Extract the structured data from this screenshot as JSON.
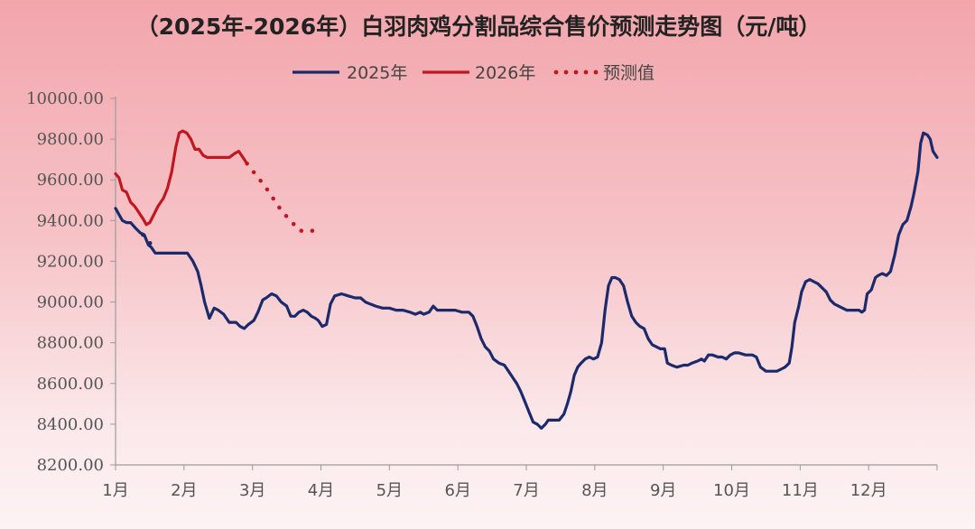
{
  "chart_data": {
    "type": "line",
    "title": "（2025年-2026年）白羽肉鸡分割品综合售价预测走势图（元/吨）",
    "xlabel": "",
    "ylabel": "",
    "ylim": [
      8200,
      10000
    ],
    "yticks": [
      "10000.00",
      "9800.00",
      "9600.00",
      "9400.00",
      "9200.00",
      "9000.00",
      "8800.00",
      "8600.00",
      "8400.00",
      "8200.00"
    ],
    "xticks": [
      "1月",
      "2月",
      "3月",
      "4月",
      "5月",
      "6月",
      "7月",
      "8月",
      "9月",
      "10月",
      "11月",
      "12月"
    ],
    "x_unit": "month (1.0 = start of 1月, 13.0 = end of 12月)",
    "grid": false,
    "legend_position": "top-center",
    "series": [
      {
        "name": "2025年",
        "color": "#1b2a6b",
        "style": "solid",
        "points": [
          [
            1.0,
            9460
          ],
          [
            1.05,
            9430
          ],
          [
            1.1,
            9400
          ],
          [
            1.16,
            9390
          ],
          [
            1.22,
            9390
          ],
          [
            1.3,
            9360
          ],
          [
            1.36,
            9340
          ],
          [
            1.42,
            9330
          ],
          [
            1.48,
            9280
          ],
          [
            1.52,
            9270
          ],
          [
            1.58,
            9240
          ],
          [
            1.7,
            9240
          ],
          [
            1.8,
            9240
          ],
          [
            1.95,
            9240
          ],
          [
            2.05,
            9240
          ],
          [
            2.13,
            9200
          ],
          [
            2.2,
            9150
          ],
          [
            2.25,
            9080
          ],
          [
            2.3,
            9000
          ],
          [
            2.37,
            8920
          ],
          [
            2.44,
            8970
          ],
          [
            2.5,
            8960
          ],
          [
            2.58,
            8940
          ],
          [
            2.66,
            8900
          ],
          [
            2.76,
            8900
          ],
          [
            2.82,
            8880
          ],
          [
            2.88,
            8870
          ],
          [
            2.94,
            8890
          ],
          [
            3.02,
            8910
          ],
          [
            3.08,
            8950
          ],
          [
            3.15,
            9010
          ],
          [
            3.2,
            9020
          ],
          [
            3.28,
            9040
          ],
          [
            3.35,
            9030
          ],
          [
            3.42,
            9000
          ],
          [
            3.5,
            8980
          ],
          [
            3.56,
            8930
          ],
          [
            3.62,
            8930
          ],
          [
            3.68,
            8950
          ],
          [
            3.74,
            8960
          ],
          [
            3.8,
            8950
          ],
          [
            3.86,
            8930
          ],
          [
            3.92,
            8920
          ],
          [
            3.96,
            8910
          ],
          [
            4.02,
            8880
          ],
          [
            4.08,
            8890
          ],
          [
            4.14,
            8990
          ],
          [
            4.2,
            9030
          ],
          [
            4.3,
            9040
          ],
          [
            4.4,
            9030
          ],
          [
            4.5,
            9020
          ],
          [
            4.58,
            9020
          ],
          [
            4.65,
            9000
          ],
          [
            4.72,
            8990
          ],
          [
            4.8,
            8980
          ],
          [
            4.9,
            8970
          ],
          [
            5.0,
            8970
          ],
          [
            5.1,
            8960
          ],
          [
            5.2,
            8960
          ],
          [
            5.3,
            8950
          ],
          [
            5.38,
            8940
          ],
          [
            5.45,
            8950
          ],
          [
            5.5,
            8940
          ],
          [
            5.58,
            8950
          ],
          [
            5.64,
            8980
          ],
          [
            5.7,
            8960
          ],
          [
            5.78,
            8960
          ],
          [
            5.86,
            8960
          ],
          [
            5.96,
            8960
          ],
          [
            6.06,
            8950
          ],
          [
            6.16,
            8950
          ],
          [
            6.22,
            8930
          ],
          [
            6.28,
            8880
          ],
          [
            6.34,
            8820
          ],
          [
            6.4,
            8780
          ],
          [
            6.46,
            8760
          ],
          [
            6.52,
            8720
          ],
          [
            6.6,
            8700
          ],
          [
            6.68,
            8690
          ],
          [
            6.74,
            8660
          ],
          [
            6.8,
            8630
          ],
          [
            6.86,
            8600
          ],
          [
            6.92,
            8560
          ],
          [
            6.98,
            8510
          ],
          [
            7.04,
            8460
          ],
          [
            7.1,
            8410
          ],
          [
            7.16,
            8400
          ],
          [
            7.22,
            8380
          ],
          [
            7.28,
            8400
          ],
          [
            7.32,
            8420
          ],
          [
            7.4,
            8420
          ],
          [
            7.48,
            8420
          ],
          [
            7.55,
            8450
          ],
          [
            7.6,
            8500
          ],
          [
            7.65,
            8560
          ],
          [
            7.7,
            8640
          ],
          [
            7.75,
            8680
          ],
          [
            7.8,
            8700
          ],
          [
            7.86,
            8720
          ],
          [
            7.92,
            8730
          ],
          [
            7.98,
            8720
          ],
          [
            8.04,
            8730
          ],
          [
            8.1,
            8800
          ],
          [
            8.15,
            8960
          ],
          [
            8.2,
            9080
          ],
          [
            8.25,
            9120
          ],
          [
            8.3,
            9120
          ],
          [
            8.36,
            9110
          ],
          [
            8.42,
            9080
          ],
          [
            8.48,
            9000
          ],
          [
            8.54,
            8930
          ],
          [
            8.6,
            8900
          ],
          [
            8.66,
            8880
          ],
          [
            8.72,
            8870
          ],
          [
            8.78,
            8820
          ],
          [
            8.84,
            8790
          ],
          [
            8.9,
            8780
          ],
          [
            8.96,
            8770
          ],
          [
            9.02,
            8770
          ],
          [
            9.06,
            8700
          ],
          [
            9.12,
            8690
          ],
          [
            9.2,
            8680
          ],
          [
            9.3,
            8690
          ],
          [
            9.36,
            8690
          ],
          [
            9.42,
            8700
          ],
          [
            9.5,
            8710
          ],
          [
            9.56,
            8720
          ],
          [
            9.6,
            8710
          ],
          [
            9.66,
            8740
          ],
          [
            9.72,
            8740
          ],
          [
            9.8,
            8730
          ],
          [
            9.86,
            8730
          ],
          [
            9.92,
            8720
          ],
          [
            9.98,
            8740
          ],
          [
            10.04,
            8750
          ],
          [
            10.1,
            8750
          ],
          [
            10.2,
            8740
          ],
          [
            10.3,
            8740
          ],
          [
            10.36,
            8730
          ],
          [
            10.42,
            8680
          ],
          [
            10.5,
            8660
          ],
          [
            10.58,
            8660
          ],
          [
            10.66,
            8660
          ],
          [
            10.72,
            8670
          ],
          [
            10.78,
            8680
          ],
          [
            10.84,
            8700
          ],
          [
            10.88,
            8780
          ],
          [
            10.92,
            8900
          ],
          [
            10.98,
            8980
          ],
          [
            11.02,
            9050
          ],
          [
            11.08,
            9100
          ],
          [
            11.14,
            9110
          ],
          [
            11.2,
            9100
          ],
          [
            11.26,
            9090
          ],
          [
            11.32,
            9070
          ],
          [
            11.38,
            9050
          ],
          [
            11.44,
            9010
          ],
          [
            11.5,
            8990
          ],
          [
            11.56,
            8980
          ],
          [
            11.62,
            8970
          ],
          [
            11.68,
            8960
          ],
          [
            11.74,
            8960
          ],
          [
            11.8,
            8960
          ],
          [
            11.86,
            8960
          ],
          [
            11.9,
            8950
          ],
          [
            11.94,
            8960
          ],
          [
            11.98,
            9040
          ],
          [
            12.04,
            9060
          ],
          [
            12.1,
            9120
          ],
          [
            12.14,
            9130
          ],
          [
            12.2,
            9140
          ],
          [
            12.26,
            9130
          ],
          [
            12.32,
            9150
          ],
          [
            12.38,
            9230
          ],
          [
            12.44,
            9330
          ],
          [
            12.5,
            9380
          ],
          [
            12.56,
            9400
          ],
          [
            12.62,
            9470
          ],
          [
            12.66,
            9530
          ],
          [
            12.72,
            9640
          ],
          [
            12.76,
            9780
          ],
          [
            12.8,
            9830
          ],
          [
            12.86,
            9820
          ],
          [
            12.9,
            9800
          ],
          [
            12.94,
            9740
          ],
          [
            13.0,
            9710
          ]
        ]
      },
      {
        "name": "2026年",
        "color": "#c01820",
        "style": "solid",
        "points": [
          [
            1.0,
            9630
          ],
          [
            1.05,
            9610
          ],
          [
            1.1,
            9550
          ],
          [
            1.16,
            9540
          ],
          [
            1.22,
            9490
          ],
          [
            1.28,
            9470
          ],
          [
            1.34,
            9440
          ],
          [
            1.4,
            9410
          ],
          [
            1.45,
            9380
          ],
          [
            1.5,
            9390
          ],
          [
            1.56,
            9430
          ],
          [
            1.62,
            9470
          ],
          [
            1.7,
            9510
          ],
          [
            1.76,
            9560
          ],
          [
            1.82,
            9640
          ],
          [
            1.88,
            9760
          ],
          [
            1.93,
            9830
          ],
          [
            1.98,
            9840
          ],
          [
            2.04,
            9830
          ],
          [
            2.1,
            9800
          ],
          [
            2.16,
            9750
          ],
          [
            2.22,
            9750
          ],
          [
            2.28,
            9720
          ],
          [
            2.34,
            9710
          ],
          [
            2.42,
            9710
          ],
          [
            2.5,
            9710
          ],
          [
            2.58,
            9710
          ],
          [
            2.66,
            9710
          ],
          [
            2.74,
            9730
          ],
          [
            2.8,
            9740
          ],
          [
            2.86,
            9710
          ],
          [
            2.92,
            9680
          ]
        ]
      },
      {
        "name": "预测值",
        "color": "#c01820",
        "style": "dotted",
        "points": [
          [
            2.92,
            9680
          ],
          [
            3.06,
            9620
          ],
          [
            3.18,
            9570
          ],
          [
            3.3,
            9510
          ],
          [
            3.44,
            9440
          ],
          [
            3.56,
            9400
          ],
          [
            3.68,
            9350
          ],
          [
            3.8,
            9350
          ],
          [
            3.92,
            9350
          ],
          [
            4.02,
            9350
          ]
        ]
      },
      {
        "name": "",
        "color": "#1b2a6b",
        "style": "dotted",
        "points": [
          [
            1.4,
            9330
          ],
          [
            1.5,
            9290
          ],
          [
            1.6,
            9270
          ]
        ]
      }
    ]
  }
}
